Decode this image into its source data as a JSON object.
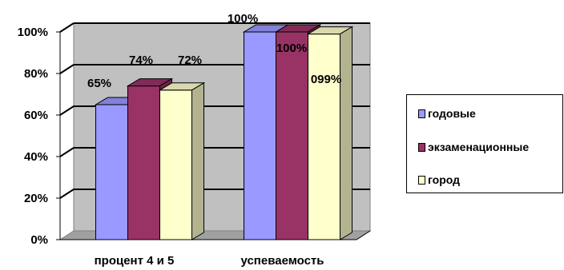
{
  "chart_data": {
    "type": "bar",
    "categories": [
      "процент 4 и 5",
      "успеваемость"
    ],
    "series": [
      {
        "name": "годовые",
        "values": [
          65,
          100
        ],
        "labels": [
          "65%",
          "100%"
        ],
        "color": "#9999ff"
      },
      {
        "name": "экзаменационные",
        "values": [
          74,
          100
        ],
        "labels": [
          "74%",
          "100%"
        ],
        "color": "#993366"
      },
      {
        "name": "город",
        "values": [
          72,
          99
        ],
        "labels": [
          "72%",
          "099%"
        ],
        "color": "#ffffcc"
      }
    ],
    "ylim": [
      0,
      100
    ],
    "yticks": [
      "0%",
      "20%",
      "40%",
      "60%",
      "80%",
      "100%"
    ],
    "grid": true,
    "legend": "right",
    "style": "3d-clustered-column"
  }
}
